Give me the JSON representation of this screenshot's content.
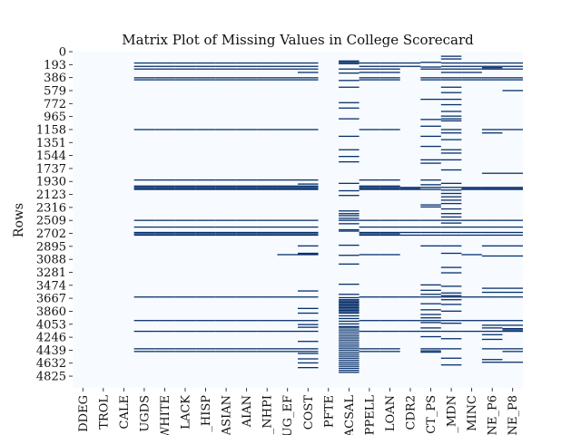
{
  "chart_data": {
    "type": "heatmap",
    "title": "Matrix Plot of Missing Values in College Scorecard",
    "xlabel": "",
    "ylabel": "Rows",
    "n_rows": 5000,
    "ylim": [
      0,
      5000
    ],
    "y_ticks": [
      0,
      193,
      386,
      579,
      772,
      965,
      1158,
      1351,
      1544,
      1737,
      1930,
      2123,
      2316,
      2509,
      2702,
      2895,
      3088,
      3281,
      3474,
      3667,
      3860,
      4053,
      4246,
      4439,
      4632,
      4825
    ],
    "columns": [
      "DDEG",
      "TROL",
      "CALE",
      "UGDS",
      "WHITE",
      "LACK",
      "_HISP",
      "ASIAN",
      "AIAN",
      "_NHPI",
      "UG_EF",
      "COST",
      "PFTE",
      "ACSAL",
      "PPELL",
      "LOAN",
      "CDR2",
      "CT_PS",
      "_MDN",
      "MINC",
      "NE_P6",
      "NE_P8"
    ],
    "colors": {
      "present": "#f7fbff",
      "missing": "#08306b",
      "text": "#111111"
    },
    "missing_rows": {
      "DDEG": [],
      "TROL": [],
      "CALE": [],
      "UGDS": [
        160,
        210,
        250,
        380,
        410,
        1150,
        1900,
        1990,
        2010,
        2030,
        2040,
        2500,
        2600,
        2680,
        2700,
        2720,
        3640,
        3990,
        4150,
        4410,
        4450
      ],
      "WHITE": [
        160,
        210,
        250,
        380,
        410,
        1150,
        1900,
        1990,
        2010,
        2030,
        2040,
        2500,
        2600,
        2680,
        2700,
        2720,
        3640,
        3990,
        4150,
        4410,
        4450
      ],
      "LACK": [
        160,
        210,
        250,
        380,
        410,
        1150,
        1900,
        1990,
        2010,
        2030,
        2040,
        2500,
        2600,
        2680,
        2700,
        2720,
        3640,
        3990,
        4150,
        4410,
        4450
      ],
      "_HISP": [
        160,
        210,
        250,
        380,
        410,
        1150,
        1900,
        1990,
        2010,
        2030,
        2040,
        2500,
        2600,
        2680,
        2700,
        2720,
        3640,
        3990,
        4150,
        4410,
        4450
      ],
      "ASIAN": [
        160,
        210,
        250,
        380,
        410,
        1150,
        1900,
        1990,
        2010,
        2030,
        2040,
        2500,
        2600,
        2680,
        2700,
        2720,
        3640,
        3990,
        4150,
        4410,
        4450
      ],
      "AIAN": [
        160,
        210,
        250,
        380,
        410,
        1150,
        1900,
        1990,
        2010,
        2030,
        2040,
        2500,
        2600,
        2680,
        2700,
        2720,
        3640,
        3990,
        4150,
        4410,
        4450
      ],
      "_NHPI": [
        160,
        210,
        250,
        380,
        410,
        1150,
        1900,
        1990,
        2010,
        2030,
        2040,
        2500,
        2600,
        2680,
        2700,
        2720,
        3640,
        3990,
        4150,
        4410,
        4450
      ],
      "UG_EF": [
        160,
        210,
        250,
        380,
        410,
        1150,
        1900,
        1990,
        2010,
        2030,
        2040,
        2500,
        2600,
        2680,
        2700,
        2720,
        3010,
        3640,
        3990,
        4150,
        4410,
        4450
      ],
      "COST": [
        160,
        210,
        250,
        300,
        380,
        410,
        1150,
        1900,
        1960,
        1990,
        2010,
        2030,
        2040,
        2500,
        2600,
        2680,
        2700,
        2720,
        2880,
        2990,
        3000,
        3010,
        3550,
        3640,
        3810,
        3880,
        3990,
        4050,
        4090,
        4150,
        4300,
        4410,
        4450,
        4480,
        4560,
        4620,
        4690
      ],
      "PFTE": [],
      "ACSAL": [
        130,
        150,
        170,
        250,
        310,
        420,
        520,
        750,
        830,
        990,
        1250,
        1450,
        1550,
        1630,
        1950,
        2060,
        2130,
        2360,
        2400,
        2430,
        2470,
        2500,
        2550,
        2640,
        2660,
        2870,
        3020,
        3150,
        3450,
        3600,
        3650,
        3680,
        3700,
        3720,
        3740,
        3760,
        3780,
        3800,
        3820,
        3840,
        3860,
        3880,
        3920,
        3960,
        4000,
        4040,
        4080,
        4100,
        4130,
        4160,
        4190,
        4220,
        4250,
        4280,
        4310,
        4340,
        4370,
        4400,
        4430,
        4460,
        4490,
        4520,
        4550,
        4580,
        4610,
        4640,
        4670,
        4700,
        4730,
        4760
      ],
      "PPELL": [
        160,
        210,
        250,
        300,
        380,
        410,
        1150,
        1900,
        1990,
        2010,
        2030,
        2040,
        2500,
        2600,
        2680,
        2700,
        2720,
        3010,
        3640,
        3990,
        4150,
        4410,
        4450
      ],
      "LOAN": [
        160,
        210,
        250,
        300,
        380,
        410,
        1150,
        1900,
        1990,
        2010,
        2030,
        2040,
        2500,
        2600,
        2680,
        2700,
        2720,
        3010,
        3640,
        3990,
        4150,
        4410,
        4450
      ],
      "CDR2": [
        160,
        210,
        2010,
        2030,
        2040,
        2500,
        2600,
        2680,
        2720,
        3640,
        3990,
        4150
      ],
      "CT_PS": [
        150,
        220,
        250,
        380,
        410,
        700,
        1000,
        1100,
        1250,
        1400,
        1600,
        1650,
        1900,
        1970,
        2010,
        2040,
        2270,
        2300,
        2500,
        2600,
        2680,
        2720,
        2880,
        3460,
        3540,
        3600,
        3640,
        3740,
        3830,
        3900,
        3950,
        3990,
        4020,
        4100,
        4150,
        4230,
        4410,
        4440,
        4460
      ],
      "_MDN": [
        60,
        100,
        160,
        210,
        250,
        300,
        380,
        410,
        520,
        600,
        700,
        780,
        880,
        950,
        990,
        1020,
        1150,
        1200,
        1300,
        1450,
        1500,
        1600,
        1750,
        1950,
        2010,
        2050,
        2100,
        2150,
        2200,
        2250,
        2330,
        2400,
        2450,
        2500,
        2540,
        2600,
        2680,
        2720,
        2880,
        2990,
        3200,
        3280,
        3480,
        3580,
        3620,
        3640,
        3680,
        3750,
        3850,
        3990,
        4030,
        4150,
        4260,
        4410,
        4550,
        4650
      ],
      "MINC": [
        160,
        210,
        250,
        300,
        380,
        410,
        2010,
        2030,
        2040,
        2500,
        2600,
        2680,
        2720,
        3010,
        3640,
        3990,
        4150
      ],
      "NE_P6": [
        160,
        210,
        230,
        250,
        380,
        410,
        1150,
        1200,
        1800,
        2010,
        2030,
        2040,
        2500,
        2600,
        2680,
        2720,
        2880,
        3030,
        3510,
        3570,
        3640,
        3990,
        4060,
        4100,
        4150,
        4200,
        4270,
        4410,
        4570,
        4610
      ],
      "NE_P8": [
        160,
        210,
        250,
        380,
        410,
        570,
        1150,
        1800,
        2010,
        2030,
        2040,
        2500,
        2600,
        2680,
        2720,
        2880,
        3030,
        3510,
        3570,
        3640,
        3990,
        4060,
        4110,
        4130,
        4150,
        4410,
        4450,
        4610
      ]
    }
  }
}
